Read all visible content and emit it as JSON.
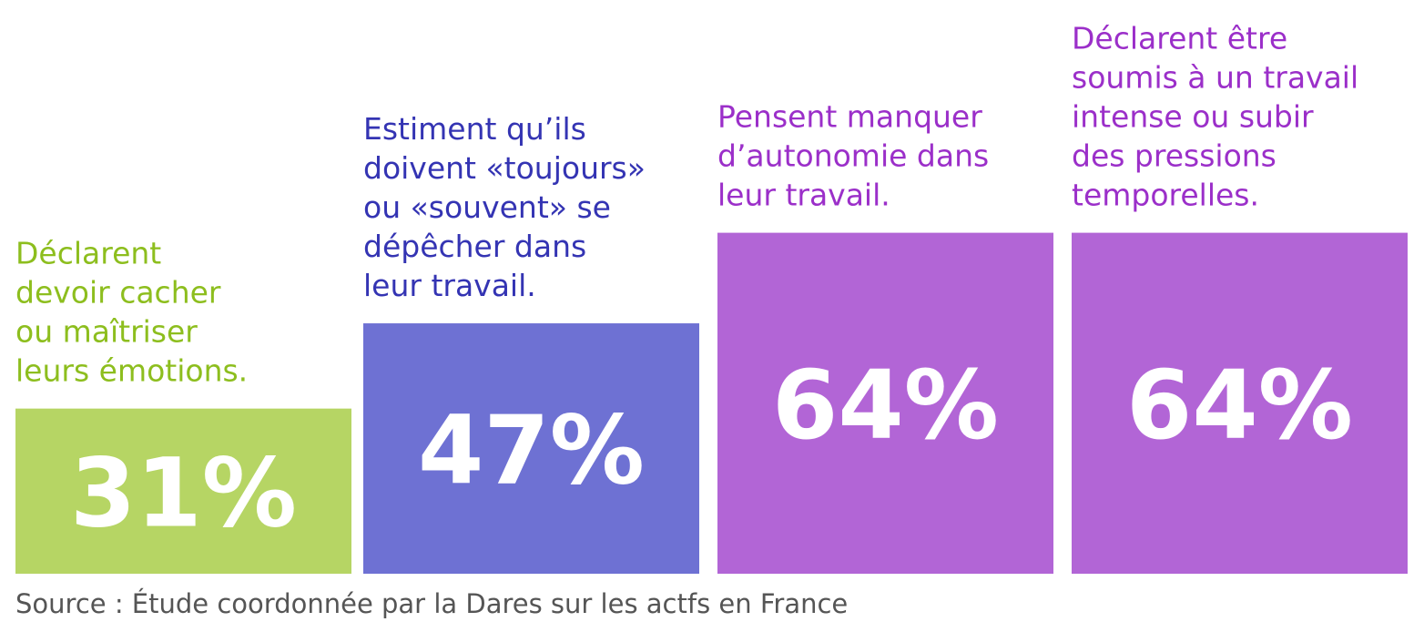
{
  "chart_data": {
    "type": "bar",
    "unit": "%",
    "ylim": [
      0,
      100
    ],
    "grid": false,
    "categories": [
      {
        "lines": [
          "Déclarent",
          "devoir cacher",
          "ou maîtriser",
          "leurs émotions."
        ],
        "value": 31,
        "value_label": "31%",
        "color": "#b6d564",
        "text_color": "#8dbe1e"
      },
      {
        "lines": [
          "Estiment qu’ils",
          "doivent «toujours»",
          "ou «souvent» se",
          "dépêcher dans",
          "leur travail."
        ],
        "value": 47,
        "value_label": "47%",
        "color": "#6e71d3",
        "text_color": "#3434b3"
      },
      {
        "lines": [
          "Pensent manquer",
          "d’autonomie dans",
          "leur travail."
        ],
        "value": 64,
        "value_label": "64%",
        "color": "#b265d6",
        "text_color": "#9b2fc9"
      },
      {
        "lines": [
          "Déclarent être",
          "soumis à un travail",
          "intense ou subir",
          "des pressions",
          "temporelles."
        ],
        "value": 64,
        "value_label": "64%",
        "color": "#b265d6",
        "text_color": "#9b2fc9"
      }
    ]
  },
  "source": "Source : Étude coordonnée par la Dares sur les actfs en France"
}
